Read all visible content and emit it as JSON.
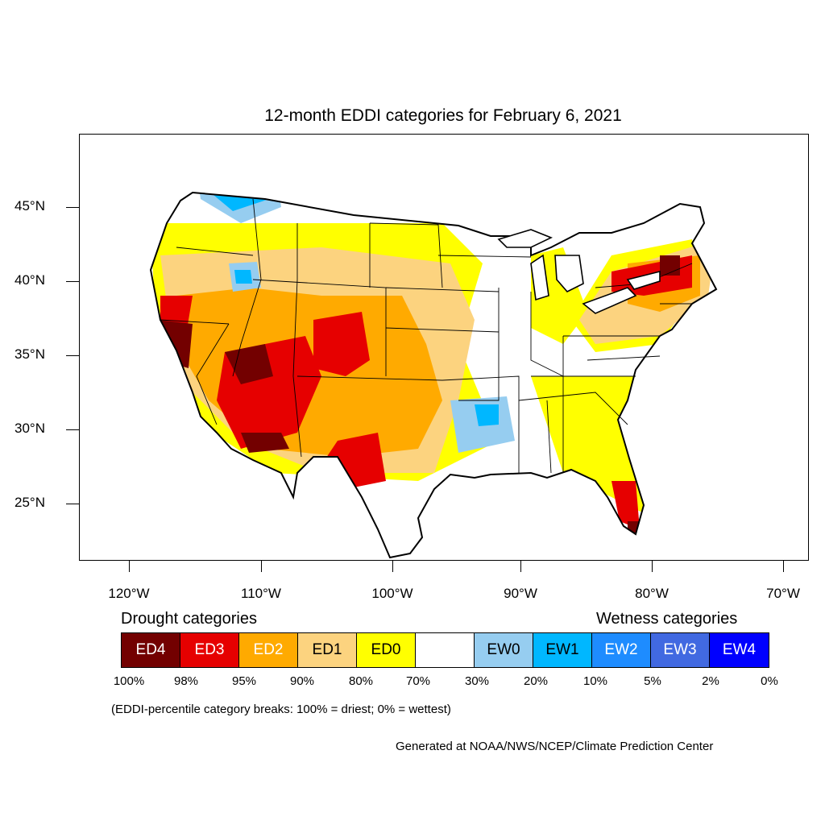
{
  "title": "12-month EDDI categories for February 6, 2021",
  "map": {
    "lat_labels": [
      "45°N",
      "40°N",
      "35°N",
      "30°N",
      "25°N"
    ],
    "lon_labels": [
      "120°W",
      "110°W",
      "100°W",
      "90°W",
      "80°W",
      "70°W"
    ],
    "colors": {
      "ED4": "#730000",
      "ED3": "#e60000",
      "ED2": "#ffaa00",
      "ED1": "#fcd37f",
      "ED0": "#ffff00",
      "neutral": "#ffffff",
      "EW0": "#96cdf0",
      "EW1": "#00b7ff",
      "EW2": "#1e8cff",
      "EW3": "#4169e1",
      "EW4": "#0000ff"
    }
  },
  "legend": {
    "drought_heading": "Drought categories",
    "wetness_heading": "Wetness categories",
    "categories": [
      "ED4",
      "ED3",
      "ED2",
      "ED1",
      "ED0",
      "",
      "EW0",
      "EW1",
      "EW2",
      "EW3",
      "EW4"
    ],
    "breaks": [
      "100%",
      "98%",
      "95%",
      "90%",
      "80%",
      "70%",
      "30%",
      "20%",
      "10%",
      "5%",
      "2%",
      "0%"
    ],
    "note": "(EDDI-percentile category breaks: 100% = driest; 0% = wettest)"
  },
  "credit": "Generated at NOAA/NWS/NCEP/Climate Prediction Center"
}
